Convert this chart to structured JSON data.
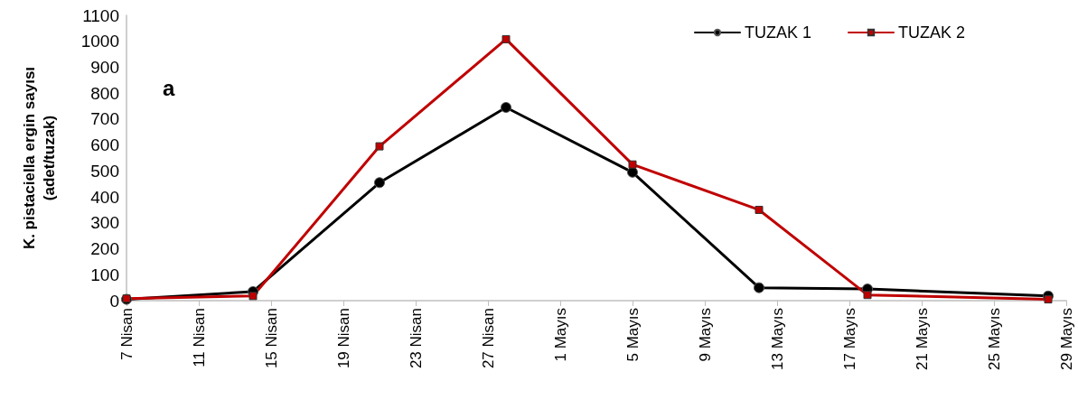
{
  "chart_data": {
    "type": "line",
    "ylabel": "K. pistaciella ergin sayısı\n(adet/tuzak)",
    "annotations": [
      "a"
    ],
    "legend": "top right",
    "grid": false,
    "line_style": "solid",
    "xlim": [
      "--04-07",
      "--05-29"
    ],
    "xticks": [
      {
        "value": "--04-07",
        "label": "7 Nisan"
      },
      {
        "value": "--04-11",
        "label": "11 Nisan"
      },
      {
        "value": "--04-15",
        "label": "15 Nisan"
      },
      {
        "value": "--04-19",
        "label": "19 Nisan"
      },
      {
        "value": "--04-23",
        "label": "23 Nisan"
      },
      {
        "value": "--04-27",
        "label": "27 Nisan"
      },
      {
        "value": "--05-01",
        "label": "1 Mayıs"
      },
      {
        "value": "--05-05",
        "label": "5 Mayıs"
      },
      {
        "value": "--05-09",
        "label": "9 Mayıs"
      },
      {
        "value": "--05-13",
        "label": "13 Mayıs"
      },
      {
        "value": "--05-17",
        "label": "17 Mayıs"
      },
      {
        "value": "--05-21",
        "label": "21 Mayıs"
      },
      {
        "value": "--05-25",
        "label": "25 Mayıs"
      },
      {
        "value": "--05-29",
        "label": "29 Mayıs"
      }
    ],
    "ylim": [
      0,
      1100
    ],
    "yticks": [
      0,
      100,
      200,
      300,
      400,
      500,
      600,
      700,
      800,
      900,
      1000,
      1100
    ],
    "x": [
      "--04-07",
      "--04-14",
      "--04-21",
      "--04-28",
      "--05-05",
      "--05-12",
      "--05-18",
      "--05-28"
    ],
    "series": [
      {
        "name": "TUZAK 1",
        "color": "#000000",
        "marker": "circle",
        "values": [
          5,
          35,
          455,
          745,
          495,
          50,
          45,
          18
        ]
      },
      {
        "name": "TUZAK 2",
        "color": "#c00000",
        "marker": "square",
        "values": [
          8,
          18,
          595,
          1008,
          525,
          350,
          22,
          5
        ]
      }
    ]
  }
}
